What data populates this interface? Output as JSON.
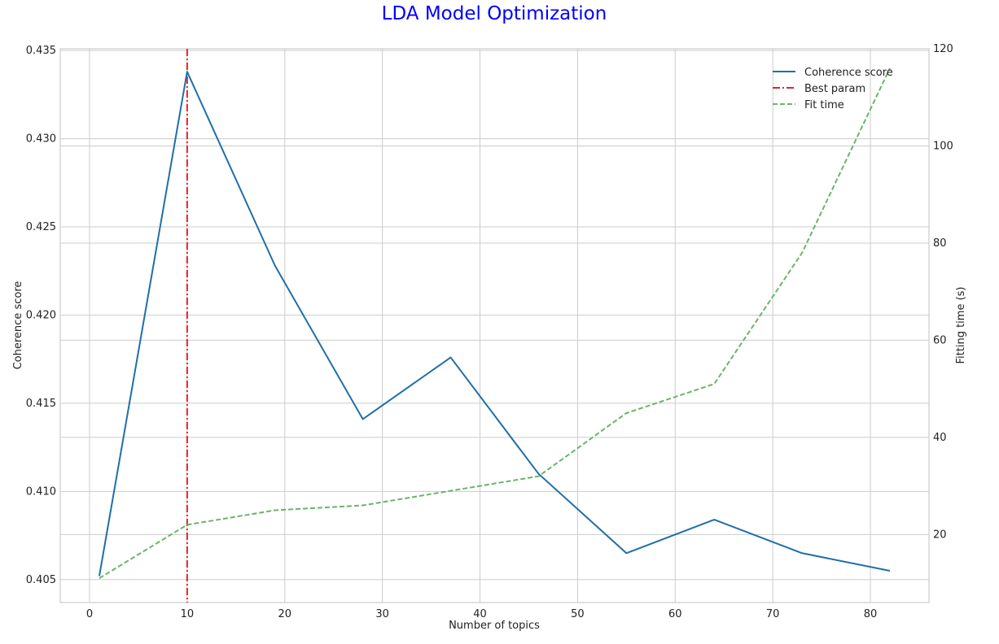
{
  "chart_data": {
    "type": "line",
    "title": "LDA Model Optimization",
    "title_color": "#0000ff",
    "xlabel": "Number of topics",
    "ylabel_left": "Coherence score",
    "ylabel_right": "Fitting time (s)",
    "x": [
      1,
      10,
      19,
      28,
      37,
      46,
      55,
      64,
      73,
      82
    ],
    "xlim": [
      -3,
      86
    ],
    "x_ticks": [
      0,
      10,
      20,
      30,
      40,
      50,
      60,
      70,
      80
    ],
    "ylim_left": [
      0.4037,
      0.4351
    ],
    "y_ticks_left": [
      0.405,
      0.41,
      0.415,
      0.42,
      0.425,
      0.43,
      0.435
    ],
    "ylim_right": [
      6,
      120
    ],
    "y_ticks_right": [
      20,
      40,
      60,
      80,
      100,
      120
    ],
    "grid": true,
    "legend_position": "top-right",
    "series": [
      {
        "name": "Coherence score",
        "axis": "left",
        "style": "solid",
        "color": "#1f6fa8",
        "values": [
          0.4052,
          0.4338,
          0.4228,
          0.4141,
          0.4176,
          0.411,
          0.4065,
          0.4084,
          0.4065,
          0.4055
        ]
      },
      {
        "name": "Fit time",
        "axis": "right",
        "style": "dashed",
        "color": "#6ab46a",
        "values": [
          11,
          22,
          25,
          26,
          29,
          32,
          45,
          51,
          78,
          116
        ]
      }
    ],
    "vline": {
      "name": "Best param",
      "x": 10,
      "style": "dashdot",
      "color": "#e8202a"
    }
  }
}
